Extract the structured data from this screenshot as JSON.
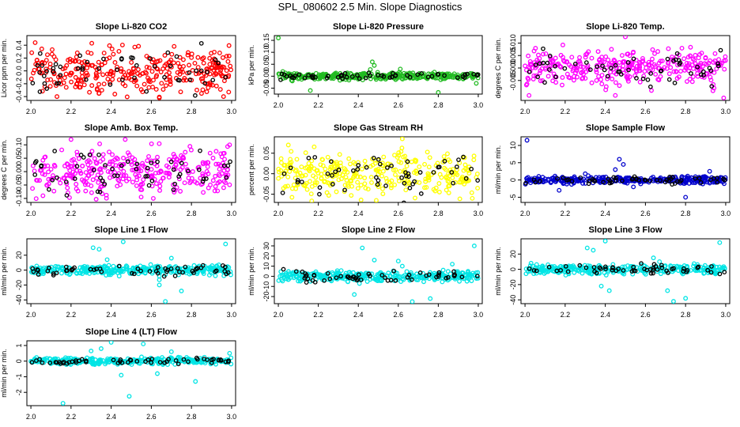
{
  "title": "SPL_080602  2.5 Min. Slope Diagnostics",
  "chart_data": [
    {
      "type": "scatter",
      "title": "Slope Li-820 CO2",
      "ylabel": "Licor ppm per min.",
      "xlim": [
        1.98,
        3.02
      ],
      "ylim": [
        -0.46,
        0.55
      ],
      "xticks": [
        "2.0",
        "2.2",
        "2.4",
        "2.6",
        "2.8",
        "3.0"
      ],
      "yticks": [
        [
          "-0.4",
          -0.4
        ],
        [
          "-0.2",
          -0.2
        ],
        [
          "0.0",
          0.0
        ],
        [
          "0.2",
          0.2
        ],
        [
          "0.4",
          0.4
        ]
      ],
      "color": "#ff0000",
      "spread": 0.17,
      "outliers": [
        [
          2.13,
          -0.4
        ],
        [
          2.64,
          -0.42
        ],
        [
          2.96,
          -0.4
        ]
      ]
    },
    {
      "type": "scatter",
      "title": "Slope Li-820 Pressure",
      "ylabel": "kPa per min.",
      "xlim": [
        1.98,
        3.02
      ],
      "ylim": [
        -0.075,
        0.17
      ],
      "xticks": [
        "2.0",
        "2.2",
        "2.4",
        "2.6",
        "2.8",
        "3.0"
      ],
      "yticks": [
        [
          "-0.05",
          -0.05
        ],
        [
          "0.00",
          0.0
        ],
        [
          "0.05",
          0.05
        ],
        [
          "0.10",
          0.1
        ],
        [
          "0.15",
          0.15
        ]
      ],
      "color": "#22bb22",
      "spread": 0.007,
      "outliers": [
        [
          2.0,
          0.16
        ],
        [
          2.47,
          0.06
        ],
        [
          2.48,
          0.045
        ],
        [
          2.46,
          0.028
        ],
        [
          2.07,
          -0.02
        ],
        [
          2.43,
          0.012
        ],
        [
          2.88,
          0.01
        ],
        [
          2.16,
          -0.06
        ],
        [
          2.8,
          -0.068
        ],
        [
          2.99,
          -0.03
        ],
        [
          2.61,
          0.03
        ]
      ]
    },
    {
      "type": "scatter",
      "title": "Slope Li-820 Temp.",
      "ylabel": "degrees C per min.",
      "xlim": [
        1.98,
        3.02
      ],
      "ylim": [
        -0.013,
        0.013
      ],
      "xticks": [
        "2.0",
        "2.2",
        "2.4",
        "2.6",
        "2.8",
        "3.0"
      ],
      "yticks": [
        [
          "-0.005",
          -0.005
        ],
        [
          "0.000",
          0.0
        ],
        [
          "0.005",
          0.005
        ],
        [
          "0.010",
          0.01
        ]
      ],
      "color": "#ff00ff",
      "spread": 0.0035,
      "outliers": [
        [
          2.02,
          -0.011
        ],
        [
          2.5,
          0.0125
        ],
        [
          2.99,
          -0.012
        ],
        [
          2.45,
          -0.011
        ],
        [
          2.88,
          0.006
        ],
        [
          2.63,
          -0.009
        ]
      ]
    },
    {
      "type": "scatter",
      "title": "Slope Amb. Box Temp.",
      "ylabel": "degrees C per min.",
      "xlim": [
        1.98,
        3.02
      ],
      "ylim": [
        -0.115,
        0.13
      ],
      "xticks": [
        "2.0",
        "2.2",
        "2.4",
        "2.6",
        "2.8",
        "3.0"
      ],
      "yticks": [
        [
          "-0.10",
          -0.1
        ],
        [
          "-0.05",
          -0.05
        ],
        [
          "0.00",
          0.0
        ],
        [
          "0.05",
          0.05
        ],
        [
          "0.10",
          0.1
        ]
      ],
      "color": "#ff00ff",
      "spread": 0.04,
      "outliers": [
        [
          2.2,
          0.12
        ],
        [
          2.47,
          0.12
        ],
        [
          2.61,
          -0.1
        ],
        [
          2.99,
          0.1
        ],
        [
          2.06,
          -0.09
        ]
      ]
    },
    {
      "type": "scatter",
      "title": "Slope Gas Stream RH",
      "ylabel": "percent per min.",
      "xlim": [
        1.98,
        3.02
      ],
      "ylim": [
        -0.07,
        0.09
      ],
      "xticks": [
        "2.0",
        "2.2",
        "2.4",
        "2.6",
        "2.8",
        "3.0"
      ],
      "yticks": [
        [
          "-0.05",
          -0.05
        ],
        [
          "0.00",
          0.0
        ],
        [
          "0.05",
          0.05
        ]
      ],
      "color": "#ffff00",
      "spread": 0.025,
      "outliers": [
        [
          2.62,
          0.085
        ],
        [
          2.49,
          -0.065
        ],
        [
          2.97,
          -0.06
        ],
        [
          2.05,
          0.07
        ]
      ]
    },
    {
      "type": "scatter",
      "title": "Slope Sample Flow",
      "ylabel": "ml/min per min.",
      "xlim": [
        1.98,
        3.02
      ],
      "ylim": [
        -6.5,
        12.5
      ],
      "xticks": [
        "2.0",
        "2.2",
        "2.4",
        "2.6",
        "2.8",
        "3.0"
      ],
      "yticks": [
        [
          "-5",
          -5
        ],
        [
          "0",
          0
        ],
        [
          "5",
          5
        ],
        [
          "10",
          10
        ]
      ],
      "color": "#0000cc",
      "spread": 0.5,
      "outliers": [
        [
          2.01,
          11.5
        ],
        [
          2.47,
          6
        ],
        [
          2.49,
          4.5
        ],
        [
          2.45,
          3
        ],
        [
          2.17,
          -3
        ],
        [
          2.8,
          -5
        ],
        [
          2.92,
          2.5
        ],
        [
          2.54,
          -2
        ],
        [
          2.3,
          1.8
        ]
      ]
    },
    {
      "type": "scatter",
      "title": "Slope Line 1 Flow",
      "ylabel": "ml/min per min.",
      "xlim": [
        1.98,
        3.02
      ],
      "ylim": [
        -45,
        42
      ],
      "xticks": [
        "2.0",
        "2.2",
        "2.4",
        "2.6",
        "2.8",
        "3.0"
      ],
      "yticks": [
        [
          "-40",
          -40
        ],
        [
          "-20",
          -20
        ],
        [
          "0",
          0
        ],
        [
          "20",
          20
        ]
      ],
      "color": "#00e5e5",
      "spread": 3,
      "outliers": [
        [
          2.31,
          30
        ],
        [
          2.34,
          28
        ],
        [
          2.46,
          38
        ],
        [
          2.38,
          14
        ],
        [
          2.67,
          -42
        ],
        [
          2.64,
          -20
        ],
        [
          2.64,
          -13
        ],
        [
          2.64,
          -8
        ],
        [
          2.67,
          -6
        ],
        [
          2.75,
          -28
        ],
        [
          2.97,
          35
        ],
        [
          2.7,
          16
        ],
        [
          2.44,
          -8
        ]
      ]
    },
    {
      "type": "scatter",
      "title": "Slope Line 2 Flow",
      "ylabel": "ml/min per min.",
      "xlim": [
        1.98,
        3.02
      ],
      "ylim": [
        -27,
        37
      ],
      "xticks": [
        "2.0",
        "2.2",
        "2.4",
        "2.6",
        "2.8",
        "3.0"
      ],
      "yticks": [
        [
          "-20",
          -20
        ],
        [
          "-10",
          -10
        ],
        [
          "0",
          0
        ],
        [
          "10",
          10
        ],
        [
          "20",
          20
        ],
        [
          "30",
          30
        ]
      ],
      "color": "#00e5e5",
      "spread": 2.5,
      "outliers": [
        [
          2.42,
          28
        ],
        [
          2.48,
          16
        ],
        [
          2.6,
          15
        ],
        [
          2.62,
          10
        ],
        [
          2.38,
          -18
        ],
        [
          2.67,
          -25
        ],
        [
          2.76,
          -22
        ],
        [
          2.98,
          30
        ],
        [
          2.87,
          12
        ]
      ]
    },
    {
      "type": "scatter",
      "title": "Slope Line 3 Flow",
      "ylabel": "ml/min per min.",
      "xlim": [
        1.98,
        3.02
      ],
      "ylim": [
        -45,
        40
      ],
      "xticks": [
        "2.0",
        "2.2",
        "2.4",
        "2.6",
        "2.8",
        "3.0"
      ],
      "yticks": [
        [
          "-40",
          -40
        ],
        [
          "-20",
          -20
        ],
        [
          "0",
          0
        ],
        [
          "20",
          20
        ]
      ],
      "color": "#00e5e5",
      "spread": 3,
      "outliers": [
        [
          2.31,
          28
        ],
        [
          2.34,
          25
        ],
        [
          2.4,
          37
        ],
        [
          2.38,
          -22
        ],
        [
          2.42,
          -28
        ],
        [
          2.64,
          15
        ],
        [
          2.67,
          10
        ],
        [
          2.74,
          -42
        ],
        [
          2.8,
          -38
        ],
        [
          2.97,
          35
        ],
        [
          2.71,
          -28
        ],
        [
          2.03,
          8
        ]
      ]
    },
    {
      "type": "scatter",
      "title": "Slope Line 4 (LT) Flow",
      "ylabel": "ml/min per min.",
      "xlim": [
        1.98,
        3.02
      ],
      "ylim": [
        -2.85,
        1.3
      ],
      "xticks": [
        "2.0",
        "2.2",
        "2.4",
        "2.6",
        "2.8",
        "3.0"
      ],
      "yticks": [
        [
          "-2",
          -2
        ],
        [
          "-1",
          -1
        ],
        [
          "0",
          0
        ],
        [
          "1",
          1
        ]
      ],
      "color": "#00e5e5",
      "spread": 0.1,
      "outliers": [
        [
          2.16,
          -2.7
        ],
        [
          2.49,
          -2.25
        ],
        [
          2.4,
          1.2
        ],
        [
          2.35,
          0.8
        ],
        [
          2.56,
          1.1
        ],
        [
          2.63,
          -0.8
        ],
        [
          2.82,
          -1.3
        ],
        [
          2.99,
          0.5
        ],
        [
          2.7,
          0.6
        ],
        [
          2.3,
          0.65
        ],
        [
          2.45,
          -0.9
        ]
      ]
    }
  ]
}
